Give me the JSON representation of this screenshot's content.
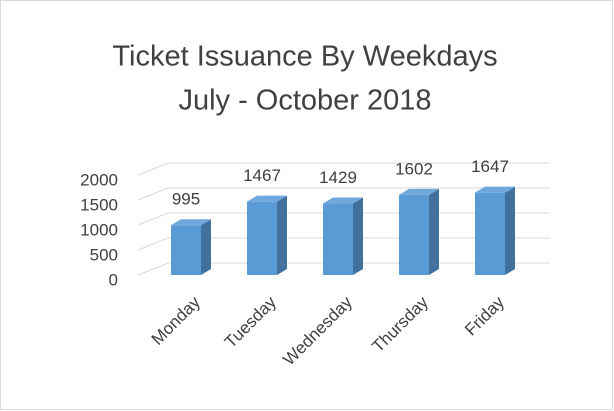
{
  "chart_data": {
    "type": "bar",
    "title": "Ticket Issuance By Weekdays",
    "subtitle": "July - October 2018",
    "categories": [
      "Monday",
      "Tuesday",
      "Wednesday",
      "Thursday",
      "Friday"
    ],
    "values": [
      995,
      1467,
      1429,
      1602,
      1647
    ],
    "color": "#5b9bd5",
    "ylim": [
      0,
      2000
    ],
    "yticks": [
      0,
      500,
      1000,
      1500,
      2000
    ],
    "grid": true,
    "data_labels": true
  }
}
